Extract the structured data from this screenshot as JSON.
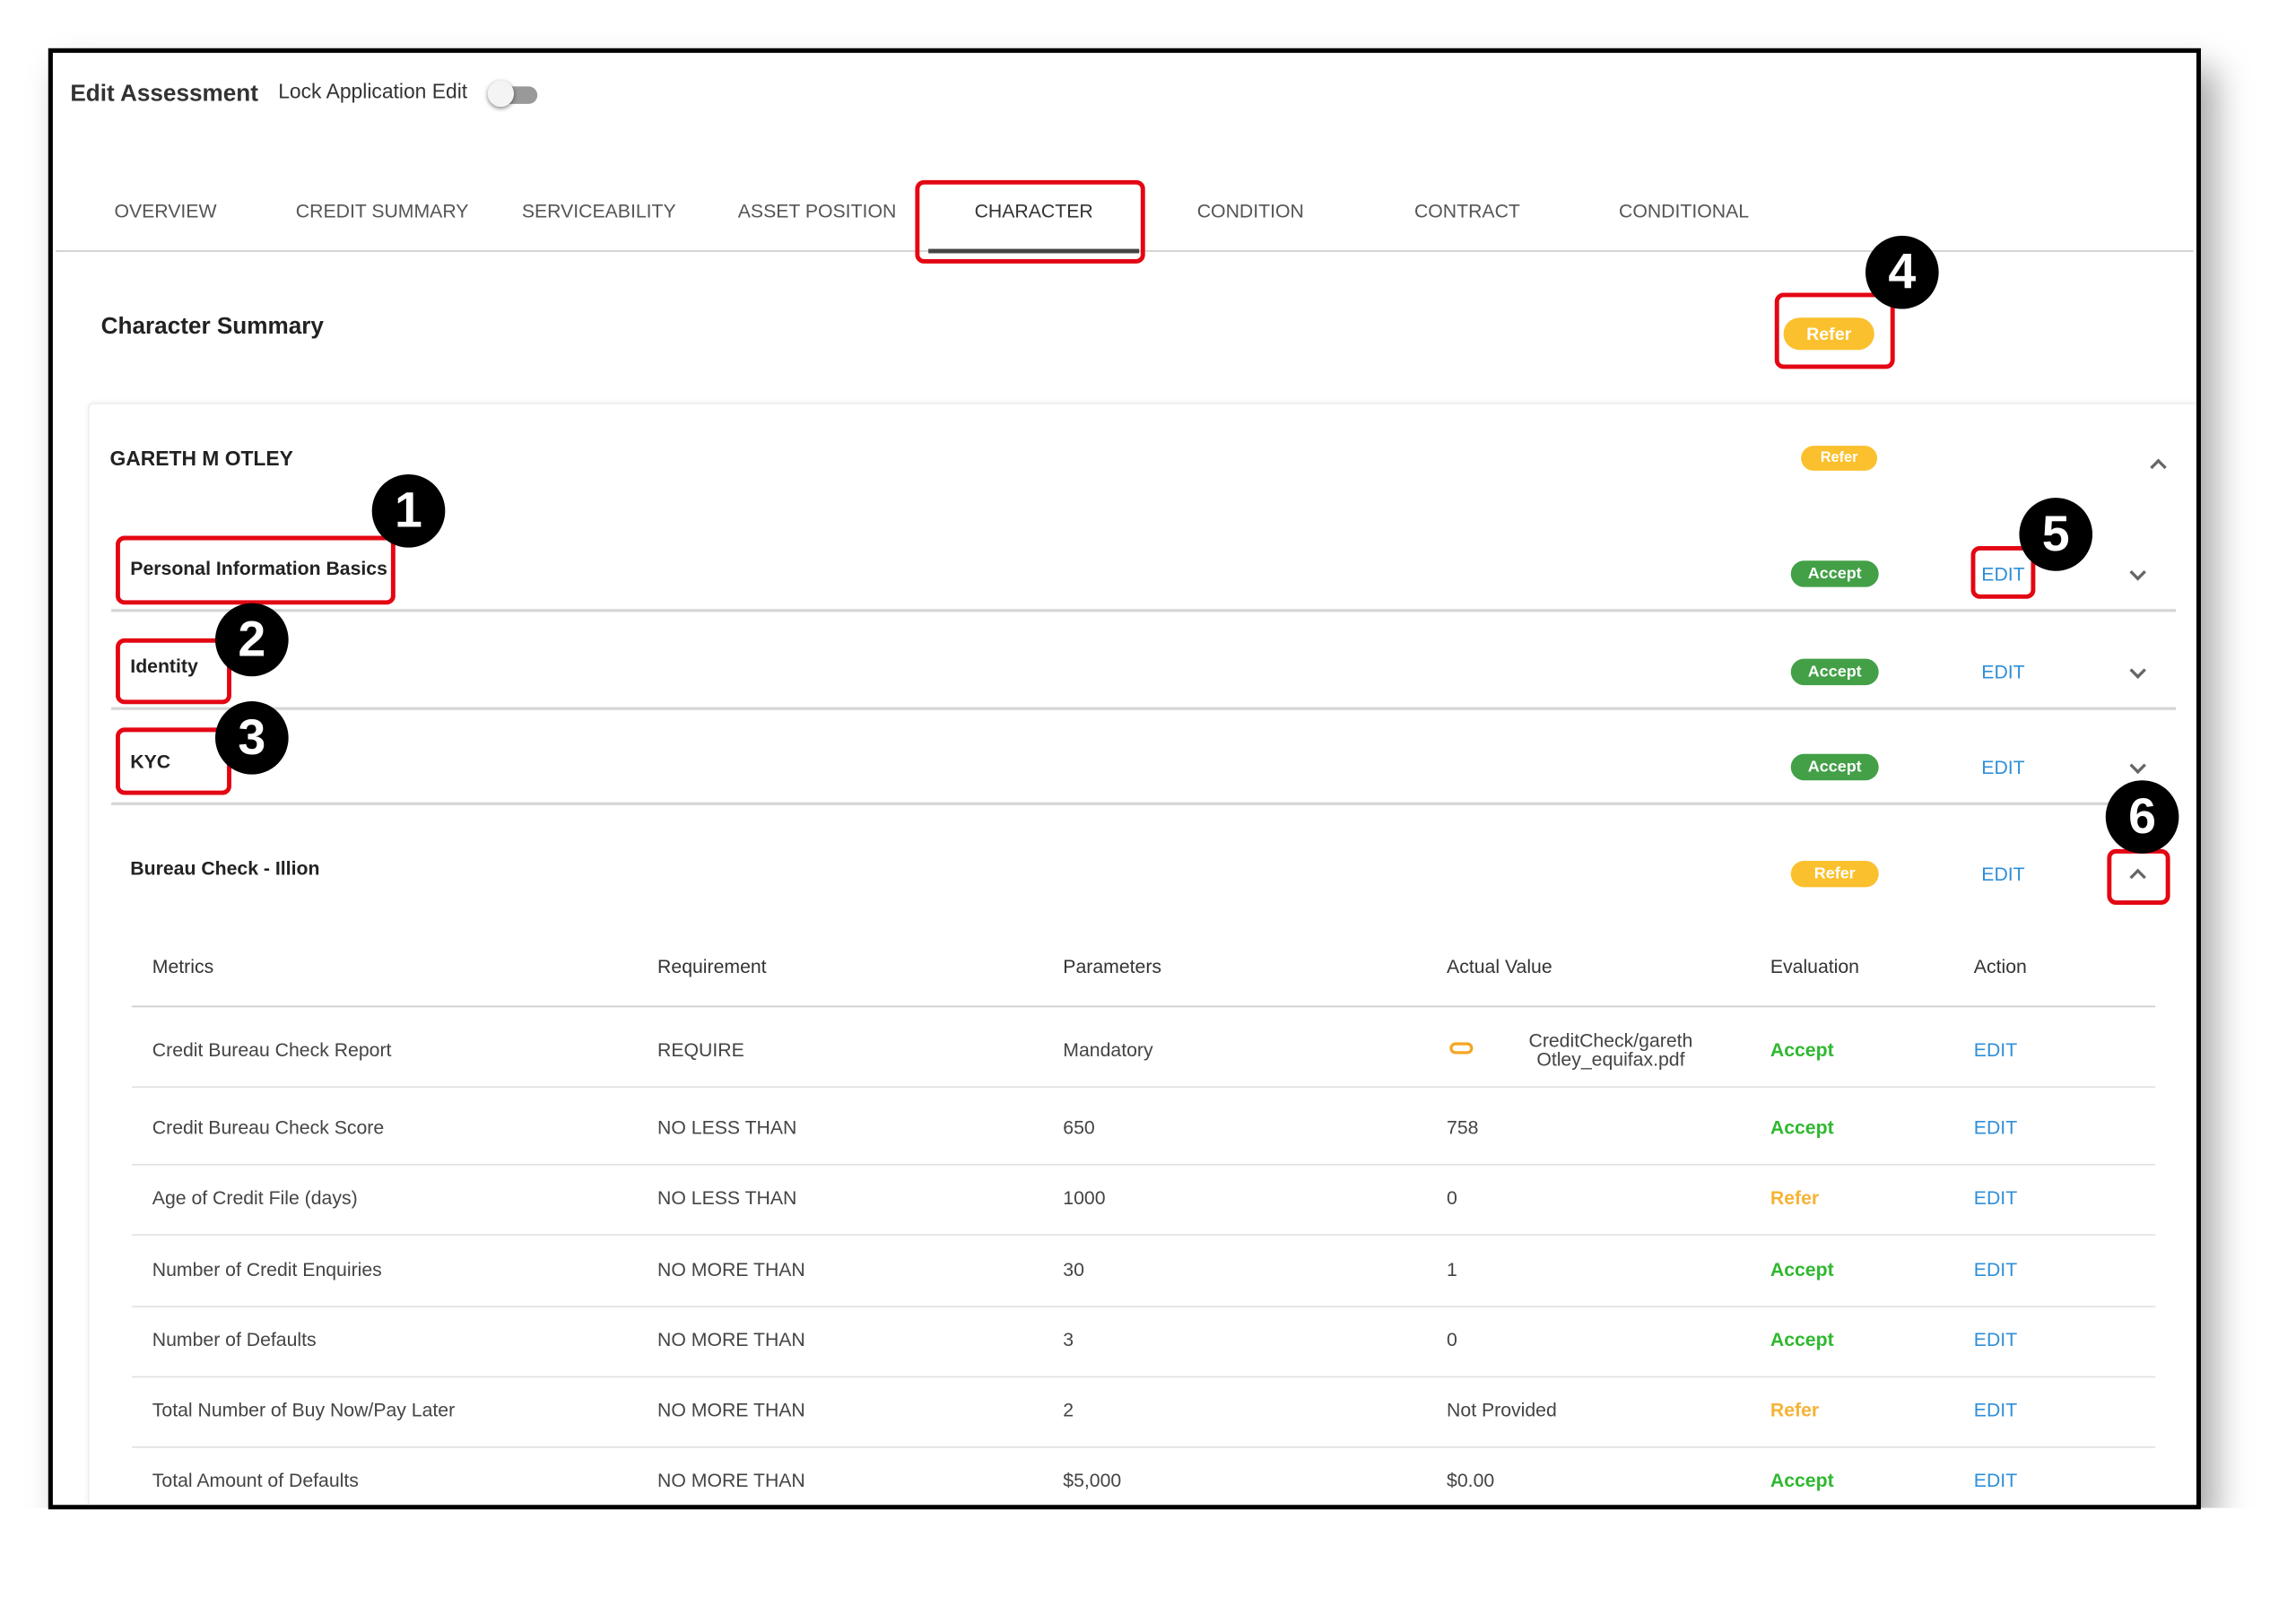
{
  "header": {
    "title": "Edit Assessment",
    "toggle_label": "Lock Application Edit"
  },
  "tabs": [
    "OVERVIEW",
    "CREDIT SUMMARY",
    "SERVICEABILITY",
    "ASSET POSITION",
    "CHARACTER",
    "CONDITION",
    "CONTRACT",
    "CONDITIONAL"
  ],
  "active_tab": 4,
  "status_colors": {
    "Accept": "#43a047",
    "Refer": "#fbc02d"
  },
  "eval_colors": {
    "Accept": "#2fb82f",
    "Refer": "#f5b335"
  },
  "summary": {
    "title": "Character Summary",
    "status": "Refer"
  },
  "applicant": {
    "name": "GARETH M OTLEY",
    "status": "Refer"
  },
  "sections": [
    {
      "title": "Personal Information Basics",
      "status": "Accept",
      "action": "EDIT"
    },
    {
      "title": "Identity",
      "status": "Accept",
      "action": "EDIT"
    },
    {
      "title": "KYC",
      "status": "Accept",
      "action": "EDIT"
    },
    {
      "title": "Bureau Check - Illion",
      "status": "Refer",
      "action": "EDIT"
    }
  ],
  "table": {
    "columns": [
      "Metrics",
      "Requirement",
      "Parameters",
      "Actual Value",
      "Evaluation",
      "Action"
    ],
    "rows": [
      [
        "Credit Bureau Check Report",
        "REQUIRE",
        "Mandatory",
        "CreditCheck/garethOtley_equifax.pdf",
        "Accept",
        "EDIT"
      ],
      [
        "Credit Bureau Check Score",
        "NO LESS THAN",
        "650",
        "758",
        "Accept",
        "EDIT"
      ],
      [
        "Age of Credit File (days)",
        "NO LESS THAN",
        "1000",
        "0",
        "Refer",
        "EDIT"
      ],
      [
        "Number of Credit Enquiries",
        "NO MORE THAN",
        "30",
        "1",
        "Accept",
        "EDIT"
      ],
      [
        "Number of Defaults",
        "NO MORE THAN",
        "3",
        "0",
        "Accept",
        "EDIT"
      ],
      [
        "Total Number of Buy Now/Pay Later",
        "NO MORE THAN",
        "2",
        "Not Provided",
        "Refer",
        "EDIT"
      ],
      [
        "Total Amount of Defaults",
        "NO MORE THAN",
        "$5,000",
        "$0.00",
        "Accept",
        "EDIT"
      ]
    ]
  },
  "callouts": [
    "1",
    "2",
    "3",
    "4",
    "5",
    "6"
  ]
}
